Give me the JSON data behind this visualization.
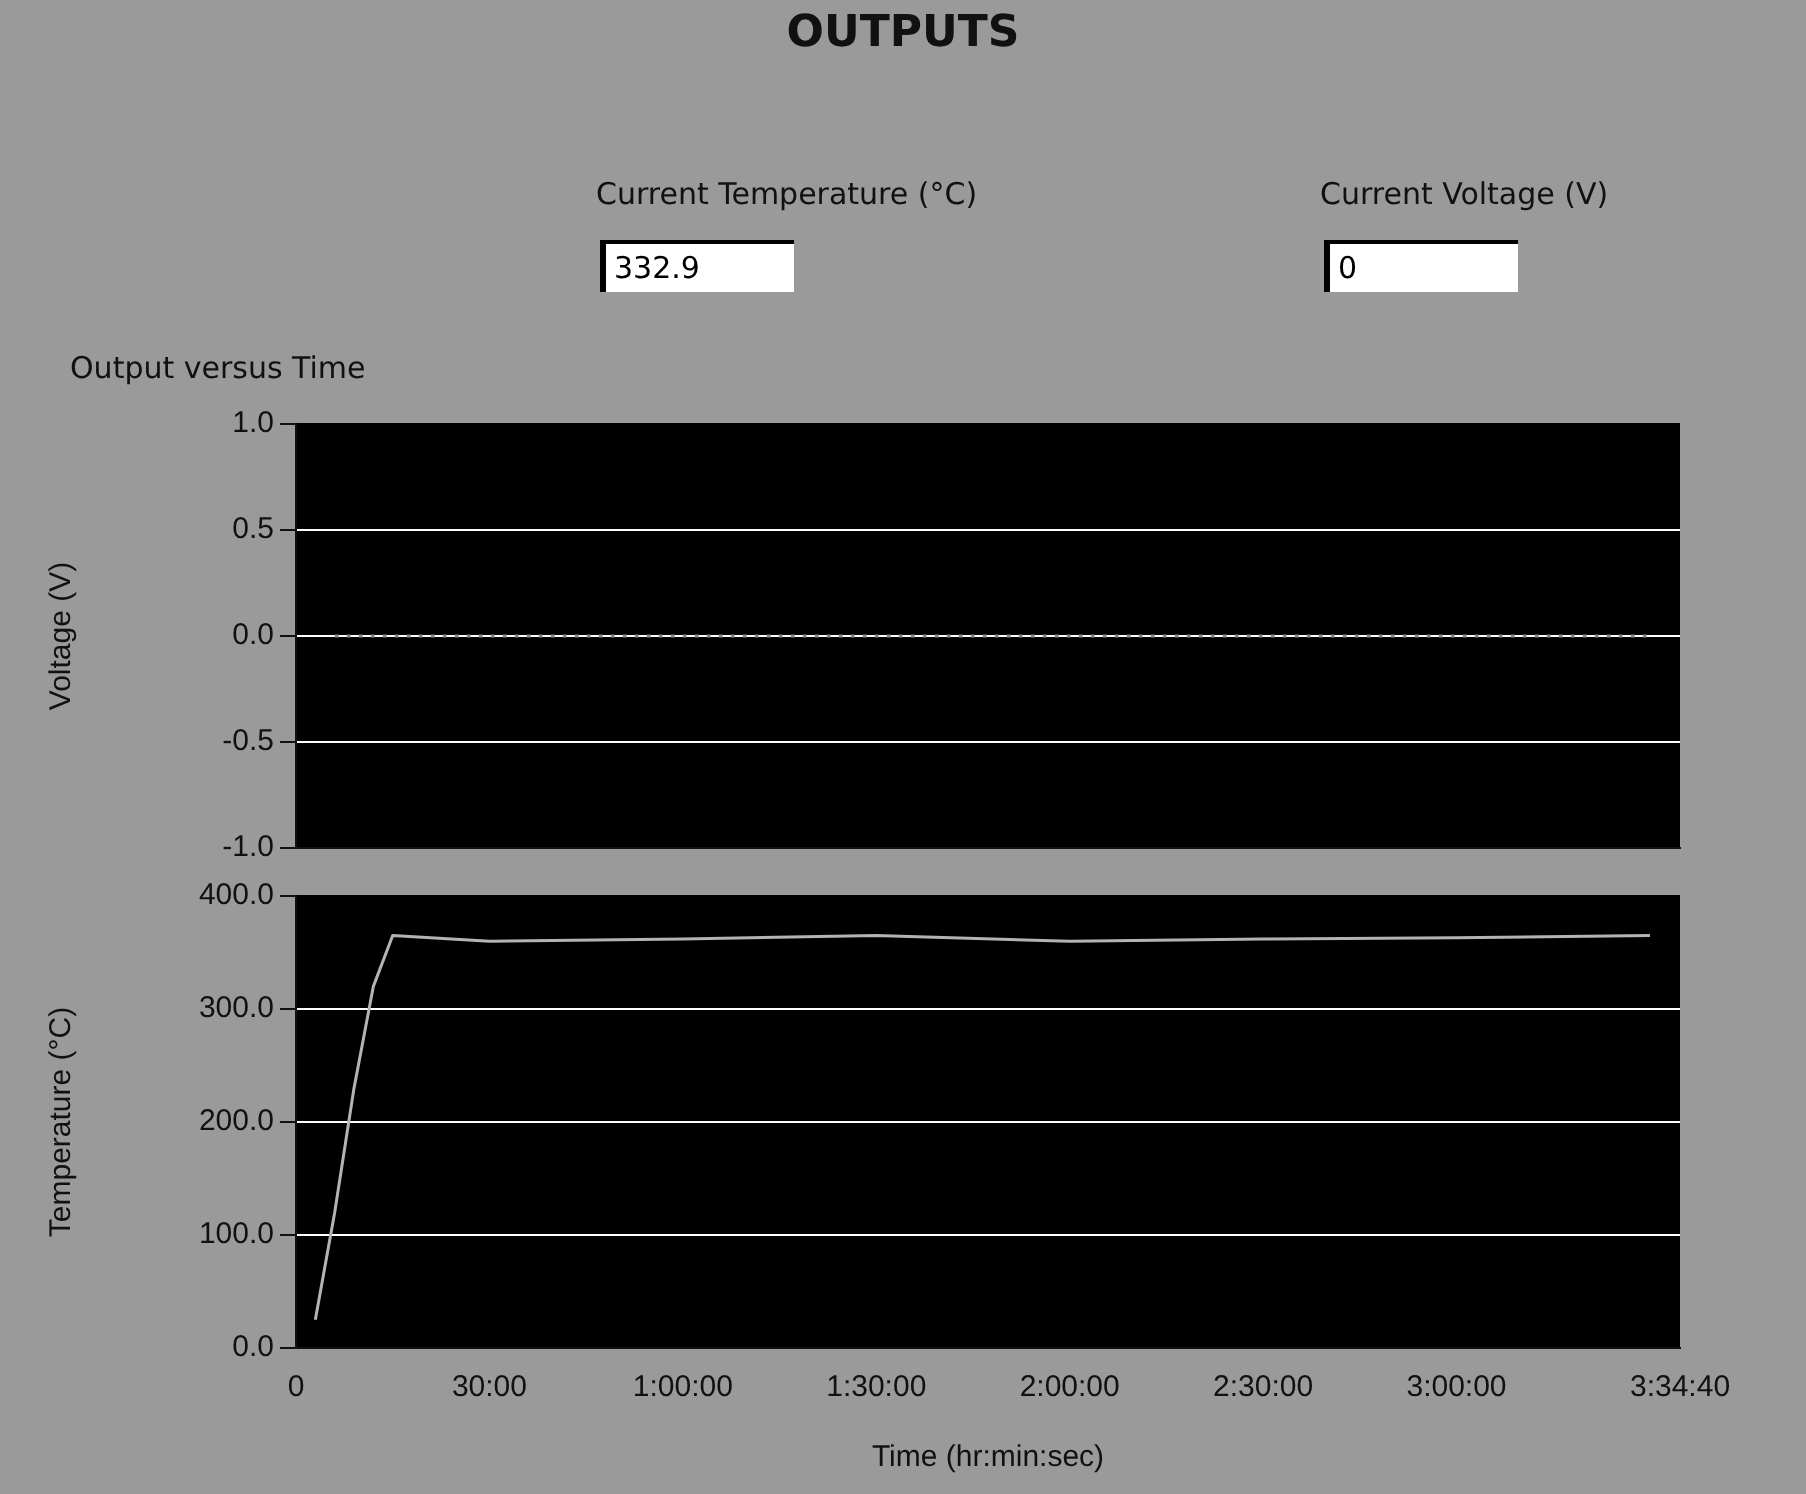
{
  "chart_data": [
    {
      "type": "other",
      "title": "OUTPUTS",
      "annotations": [
        "Current Temperature (°C)",
        "332.9",
        "Current Voltage (V)",
        "0"
      ]
    },
    {
      "type": "line",
      "title": "Output versus Time",
      "ylabel": "Voltage (V)",
      "x": [
        360,
        12600
      ],
      "series": [
        {
          "color": "#8a8a8a",
          "values": [
            0,
            0
          ],
          "line_style": "dotted"
        }
      ],
      "xlim": [
        0,
        12880
      ],
      "ylim": [
        -1,
        1
      ],
      "yticks": [
        {
          "value": -1,
          "label": "-1.0"
        },
        {
          "value": -0.5,
          "label": "-0.5"
        },
        {
          "value": 0,
          "label": "0.0"
        },
        {
          "value": 0.5,
          "label": "0.5"
        },
        {
          "value": 1,
          "label": "1.0"
        }
      ],
      "grid": "y",
      "tick_labels": "y",
      "marker": "none"
    },
    {
      "type": "line",
      "xlabel": "Time (hr:min:sec)",
      "ylabel": "Temperature (°C)",
      "x": [
        180,
        360,
        540,
        720,
        900,
        1800,
        3600,
        5400,
        7200,
        9000,
        10800,
        12600
      ],
      "series": [
        {
          "color": "#b4b4b4",
          "values": [
            25,
            120,
            230,
            320,
            365,
            360,
            362,
            365,
            360,
            362,
            363,
            365
          ]
        }
      ],
      "xlim": [
        0,
        12880
      ],
      "xticks": [
        {
          "value": 0,
          "label": "0"
        },
        {
          "value": 1800,
          "label": "30:00"
        },
        {
          "value": 3600,
          "label": "1:00:00"
        },
        {
          "value": 5400,
          "label": "1:30:00"
        },
        {
          "value": 7200,
          "label": "2:00:00"
        },
        {
          "value": 9000,
          "label": "2:30:00"
        },
        {
          "value": 10800,
          "label": "3:00:00"
        },
        {
          "value": 12880,
          "label": "3:34:40"
        }
      ],
      "ylim": [
        0,
        400
      ],
      "yticks": [
        {
          "value": 0,
          "label": "0.0"
        },
        {
          "value": 100,
          "label": "100.0"
        },
        {
          "value": 200,
          "label": "200.0"
        },
        {
          "value": 300,
          "label": "300.0"
        },
        {
          "value": 400,
          "label": "400.0"
        }
      ],
      "grid": "y",
      "marker": "none"
    }
  ]
}
